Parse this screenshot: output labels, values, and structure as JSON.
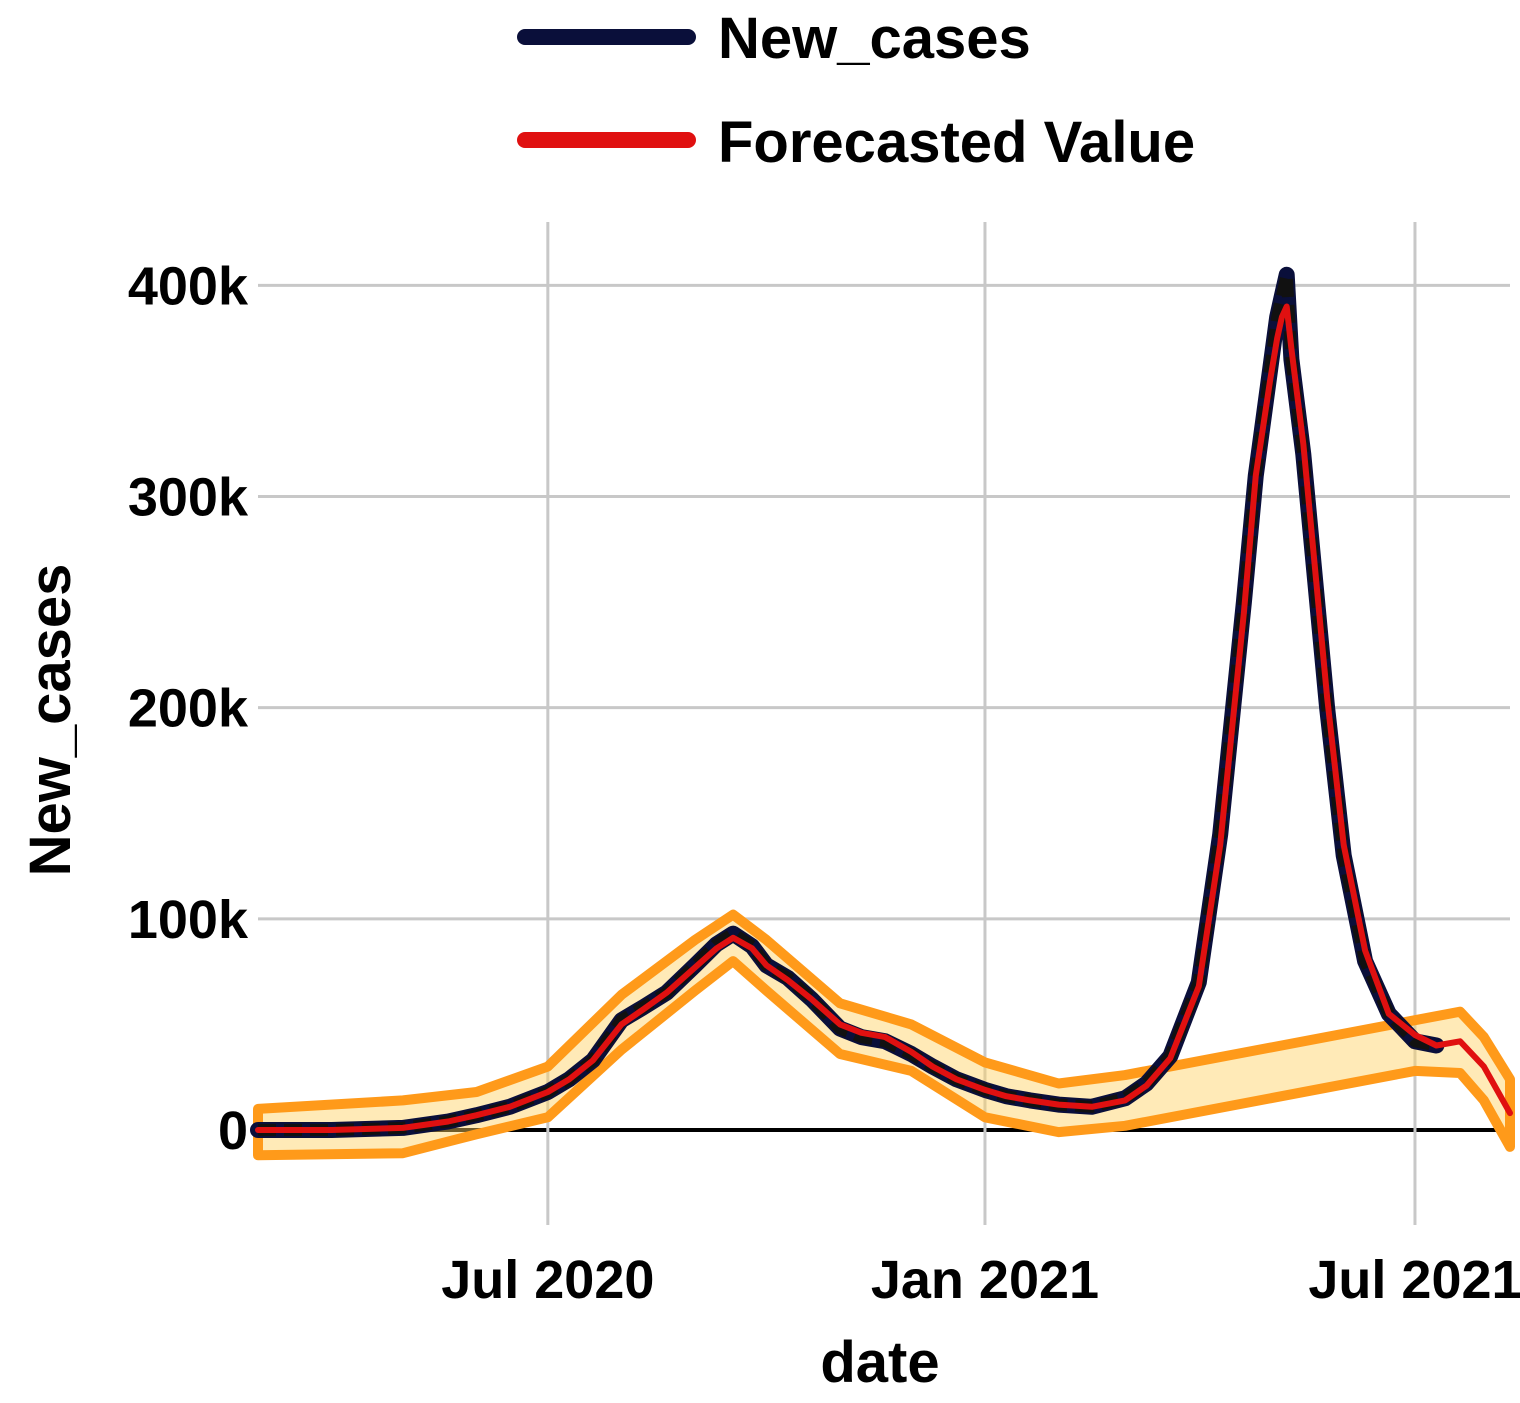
{
  "colors": {
    "background": "#ffffff",
    "grid": "#c8c8c8",
    "zero_line": "#000000",
    "new_cases_line": "#0a0f3a",
    "new_cases_dash": "#111111",
    "forecast_line": "#e01010",
    "band_outer": "#ff9a1a",
    "band_inner": "#ffd060"
  },
  "legend": {
    "items": [
      {
        "label": "New_cases",
        "color": "#0a0f3a",
        "icon": "legend-line-icon"
      },
      {
        "label": "Forecasted Value",
        "color": "#e01010",
        "icon": "legend-line-icon"
      }
    ]
  },
  "chart_data": {
    "type": "line",
    "xlabel": "date",
    "ylabel": "New_cases",
    "x_tick_labels": [
      "Jul 2020",
      "Jan 2021",
      "Jul 2021"
    ],
    "x_ticks": [
      "2020-07-01",
      "2021-01-01",
      "2021-07-01"
    ],
    "xlim": [
      "2020-03-01",
      "2021-08-10"
    ],
    "y_tick_labels": [
      "0",
      "100k",
      "200k",
      "300k",
      "400k"
    ],
    "y_ticks": [
      0,
      100000,
      200000,
      300000,
      400000
    ],
    "ylim": [
      -45000,
      430000
    ],
    "grid": true,
    "legend_position": "top",
    "series": [
      {
        "name": "New_cases",
        "x": [
          "2020-03-01",
          "2020-04-01",
          "2020-05-01",
          "2020-05-20",
          "2020-06-01",
          "2020-06-15",
          "2020-07-01",
          "2020-07-10",
          "2020-07-20",
          "2020-08-01",
          "2020-08-10",
          "2020-08-20",
          "2020-09-01",
          "2020-09-10",
          "2020-09-17",
          "2020-09-25",
          "2020-10-01",
          "2020-10-10",
          "2020-10-20",
          "2020-11-01",
          "2020-11-10",
          "2020-11-20",
          "2020-12-01",
          "2020-12-10",
          "2020-12-20",
          "2021-01-01",
          "2021-01-10",
          "2021-01-20",
          "2021-02-01",
          "2021-02-15",
          "2021-03-01",
          "2021-03-10",
          "2021-03-20",
          "2021-04-01",
          "2021-04-10",
          "2021-04-20",
          "2021-04-25",
          "2021-05-01",
          "2021-05-04",
          "2021-05-06",
          "2021-05-08",
          "2021-05-10",
          "2021-05-15",
          "2021-05-20",
          "2021-05-25",
          "2021-06-01",
          "2021-06-10",
          "2021-06-20",
          "2021-07-01",
          "2021-07-10"
        ],
        "y": [
          0,
          0,
          1000,
          4000,
          7000,
          11000,
          18000,
          24000,
          33000,
          52000,
          58000,
          65000,
          78000,
          88000,
          93000,
          87000,
          78000,
          72000,
          62000,
          48000,
          44000,
          42000,
          36000,
          30000,
          24000,
          19000,
          16000,
          14000,
          12000,
          11000,
          15000,
          22000,
          35000,
          70000,
          140000,
          250000,
          310000,
          360000,
          385000,
          395000,
          405000,
          365000,
          320000,
          260000,
          200000,
          130000,
          80000,
          55000,
          42000,
          40000
        ]
      },
      {
        "name": "Forecasted Value",
        "x": [
          "2020-03-01",
          "2020-04-01",
          "2020-05-01",
          "2020-05-20",
          "2020-06-01",
          "2020-06-15",
          "2020-07-01",
          "2020-07-10",
          "2020-07-20",
          "2020-08-01",
          "2020-08-10",
          "2020-08-20",
          "2020-09-01",
          "2020-09-10",
          "2020-09-17",
          "2020-09-25",
          "2020-10-01",
          "2020-10-10",
          "2020-10-20",
          "2020-11-01",
          "2020-11-10",
          "2020-11-20",
          "2020-12-01",
          "2020-12-10",
          "2020-12-20",
          "2021-01-01",
          "2021-01-10",
          "2021-01-20",
          "2021-02-01",
          "2021-02-15",
          "2021-03-01",
          "2021-03-10",
          "2021-03-20",
          "2021-04-01",
          "2021-04-10",
          "2021-04-20",
          "2021-04-25",
          "2021-05-01",
          "2021-05-04",
          "2021-05-06",
          "2021-05-08",
          "2021-05-10",
          "2021-05-15",
          "2021-05-20",
          "2021-05-25",
          "2021-06-01",
          "2021-06-10",
          "2021-06-20",
          "2021-07-01",
          "2021-07-10",
          "2021-07-20",
          "2021-07-30",
          "2021-08-10"
        ],
        "y": [
          0,
          0,
          1000,
          4000,
          7000,
          11000,
          18000,
          24000,
          33000,
          50000,
          57000,
          65000,
          77000,
          86000,
          91000,
          86000,
          78000,
          71000,
          62000,
          50000,
          46000,
          44000,
          37000,
          30000,
          24000,
          19000,
          16000,
          14000,
          12000,
          11000,
          14000,
          21000,
          34000,
          68000,
          135000,
          245000,
          310000,
          355000,
          375000,
          385000,
          390000,
          370000,
          325000,
          265000,
          205000,
          135000,
          85000,
          55000,
          45000,
          40000,
          42000,
          30000,
          8000
        ]
      }
    ],
    "forecast_band": {
      "x": [
        "2020-03-01",
        "2020-05-01",
        "2020-06-01",
        "2020-07-01",
        "2020-08-01",
        "2020-09-01",
        "2020-09-17",
        "2020-10-01",
        "2020-11-01",
        "2020-12-01",
        "2021-01-01",
        "2021-02-01",
        "2021-03-01",
        "2021-07-01",
        "2021-07-20",
        "2021-07-30",
        "2021-08-10"
      ],
      "lower": [
        -12000,
        -11000,
        -2000,
        6000,
        38000,
        66000,
        80000,
        66000,
        36000,
        28000,
        6000,
        -1000,
        2000,
        28000,
        27000,
        14000,
        -8000
      ],
      "upper": [
        10000,
        14000,
        18000,
        30000,
        64000,
        90000,
        102000,
        90000,
        60000,
        50000,
        32000,
        22000,
        26000,
        52000,
        56000,
        44000,
        24000
      ]
    }
  }
}
